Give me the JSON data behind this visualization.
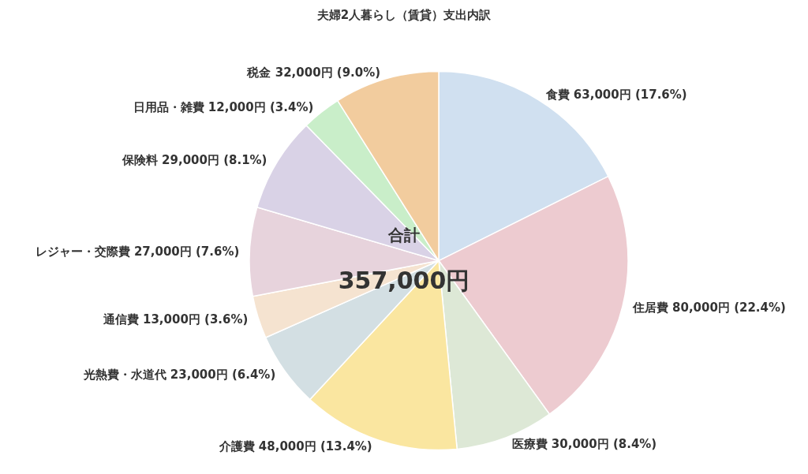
{
  "chart_data": {
    "type": "pie",
    "title": "夫婦2人暮らし（賃貸）支出内訳",
    "categories": [
      "食費",
      "住居費",
      "医療費",
      "介護費",
      "光熱費・水道代",
      "通信費",
      "レジャー・交際費",
      "保険料",
      "日用品・雑費",
      "税金"
    ],
    "values": [
      63000,
      80000,
      30000,
      48000,
      23000,
      13000,
      27000,
      29000,
      12000,
      32000
    ],
    "value_labels": [
      "63,000円 (17.6%)",
      "80,000円 (22.4%)",
      "30,000円 (8.4%)",
      "48,000円 (13.4%)",
      "23,000円 (6.4%)",
      "13,000円 (3.6%)",
      "27,000円 (7.6%)",
      "29,000円 (8.1%)",
      "12,000円 (3.4%)",
      "32,000円 (9.0%)"
    ],
    "colors": [
      "#d0e0f0",
      "#edcbd0",
      "#dde8d6",
      "#fae6a0",
      "#d3dfe3",
      "#f5e3d0",
      "#e7d3dc",
      "#d9d2e6",
      "#c9eec9",
      "#f2cc9e"
    ],
    "annotations": [
      "合計",
      "357,000円"
    ],
    "legend": false
  }
}
